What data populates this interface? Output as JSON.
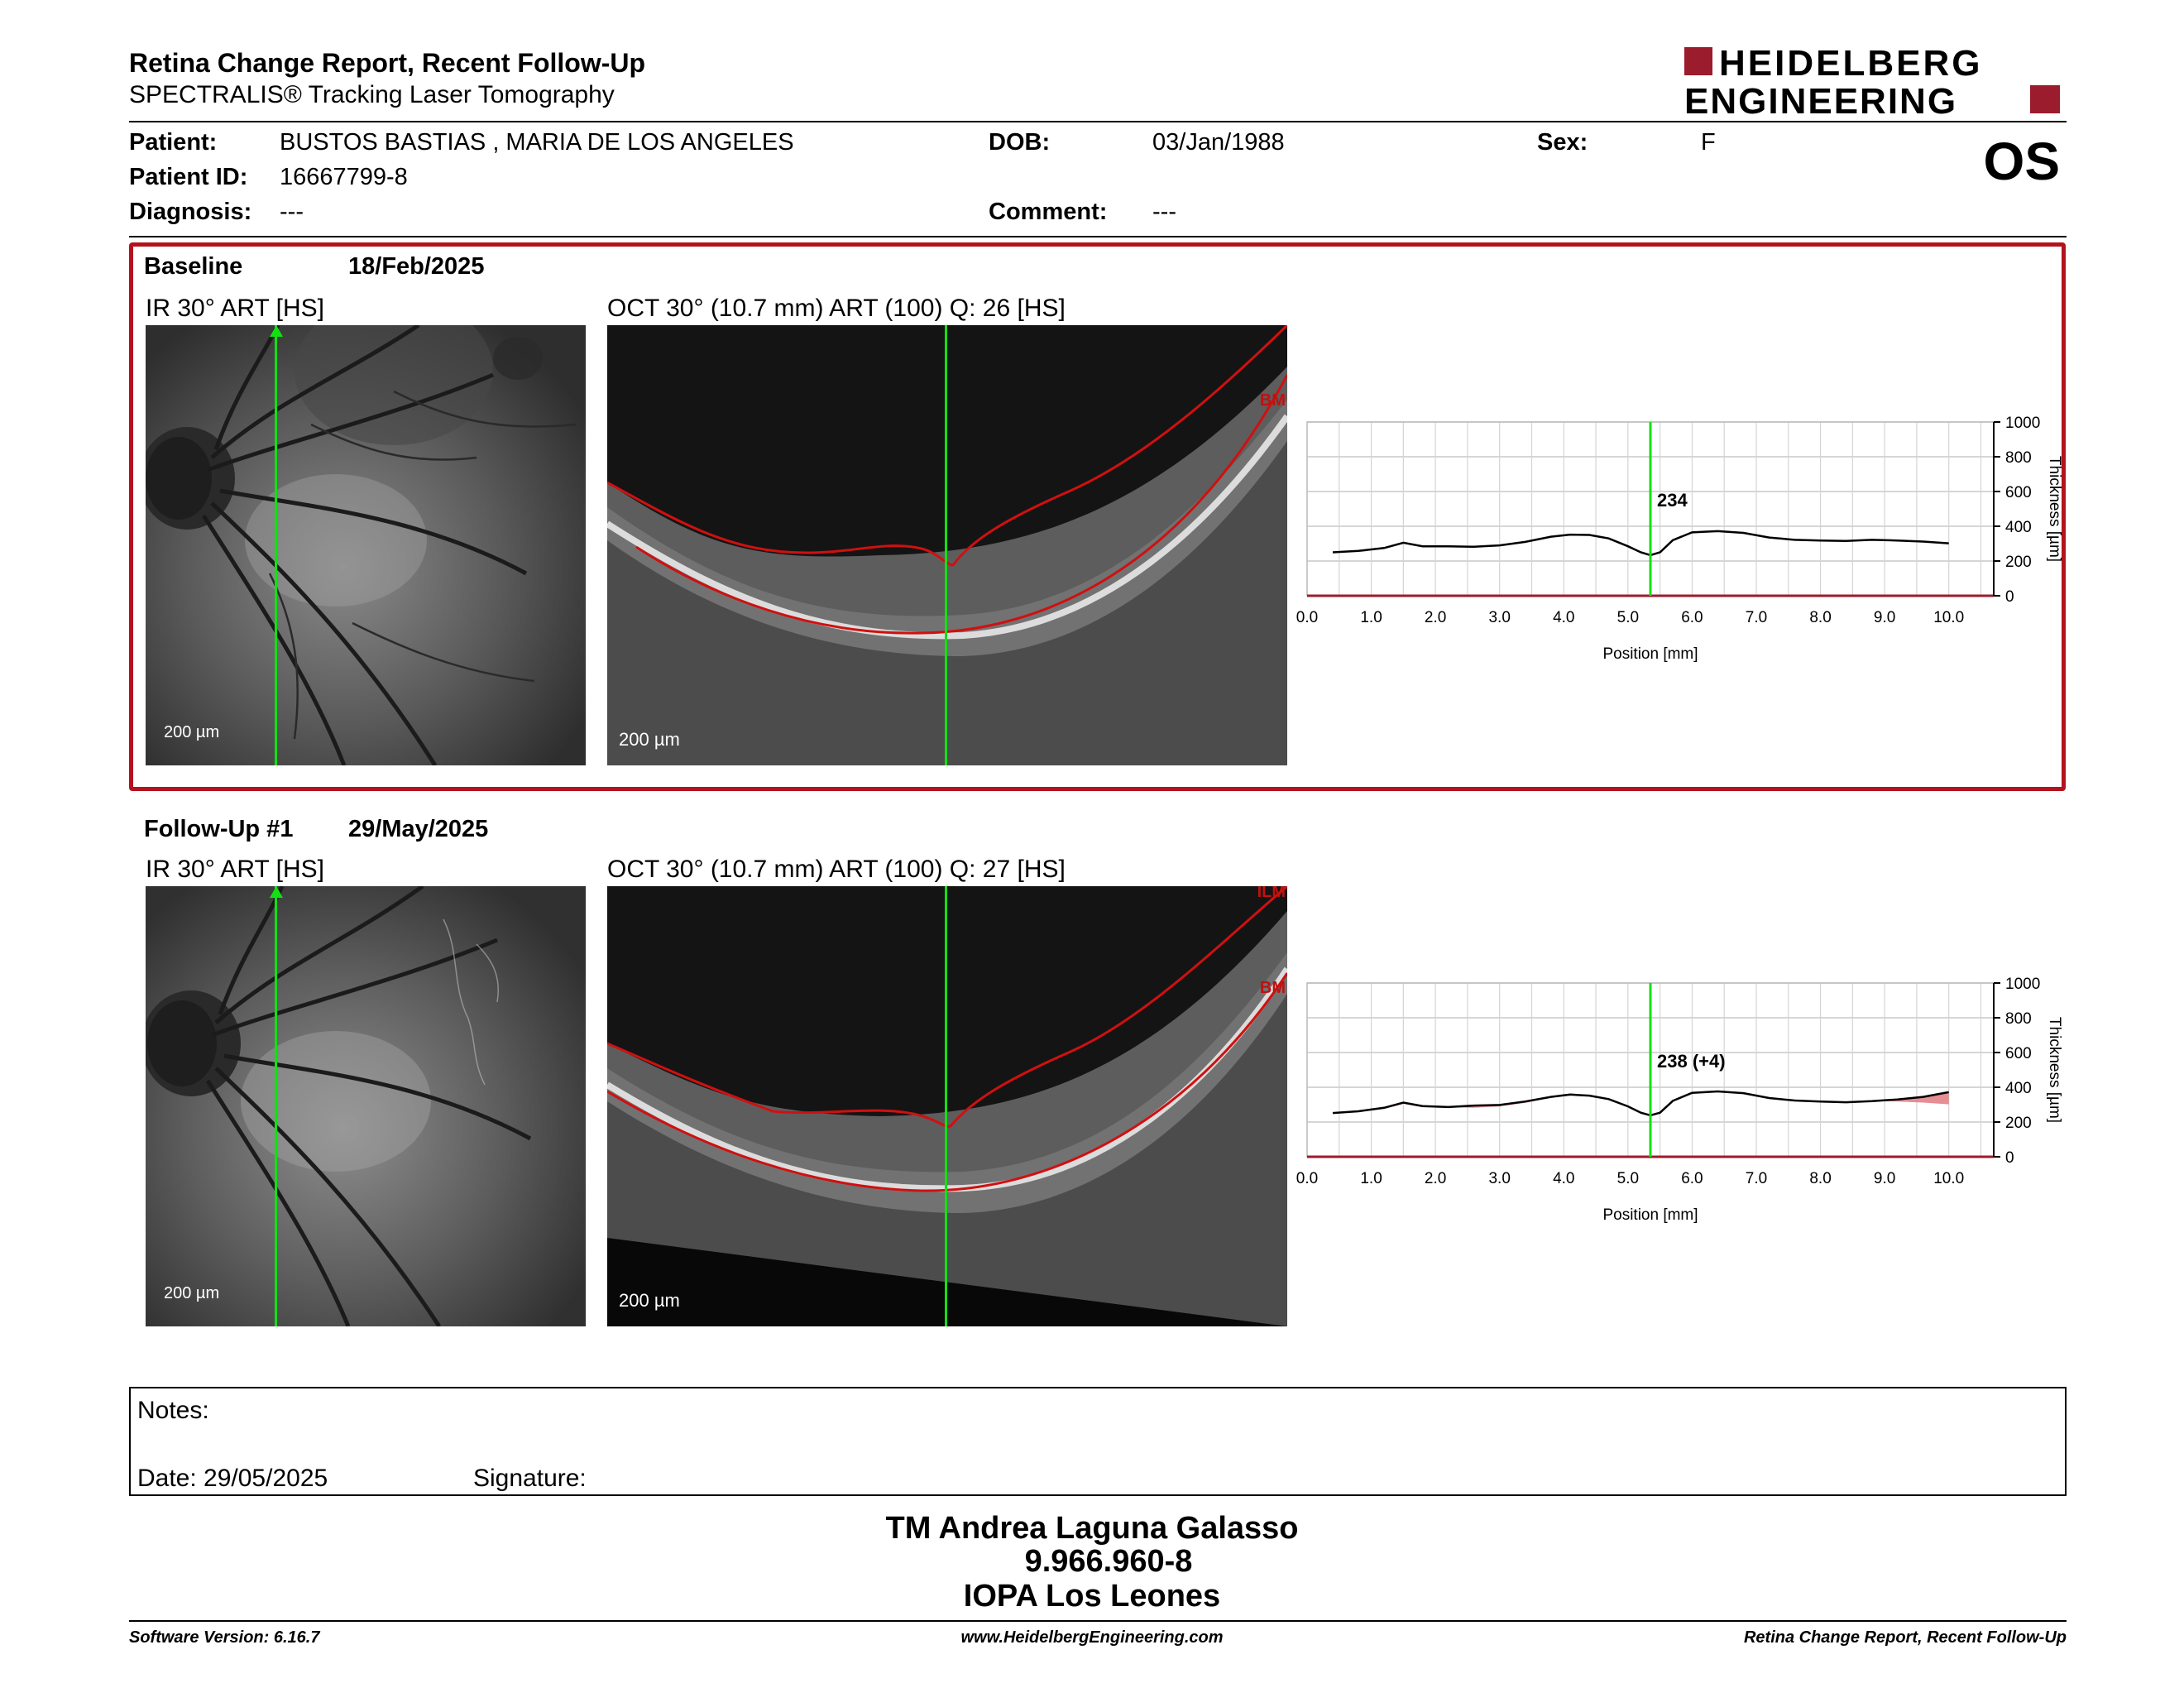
{
  "header": {
    "title": "Retina Change Report, Recent Follow-Up",
    "subtitle": "SPECTRALIS® Tracking Laser Tomography",
    "logo_line1": "HEIDELBERG",
    "logo_line2": "ENGINEERING",
    "eye": "OS"
  },
  "patient": {
    "name_label": "Patient:",
    "name": "BUSTOS BASTIAS , MARIA DE LOS ANGELES",
    "id_label": "Patient ID:",
    "id": "16667799-8",
    "diagnosis_label": "Diagnosis:",
    "diagnosis": "---",
    "dob_label": "DOB:",
    "dob": "03/Jan/1988",
    "comment_label": "Comment:",
    "comment": "---",
    "sex_label": "Sex:",
    "sex": "F"
  },
  "baseline": {
    "label": "Baseline",
    "date": "18/Feb/2025",
    "ir_caption": "IR 30° ART [HS]",
    "oct_caption": "OCT 30° (10.7 mm) ART (100) Q: 26 [HS]",
    "scale": "200 µm",
    "bm_label": "BM",
    "marker_label": "234"
  },
  "followup": {
    "label": "Follow-Up #1",
    "date": "29/May/2025",
    "ir_caption": "IR 30° ART [HS]",
    "oct_caption": "OCT 30° (10.7 mm) ART (100) Q: 27 [HS]",
    "scale": "200 µm",
    "bm_label": "BM",
    "ilm_label": "ILM",
    "marker_label": "238 (+4)"
  },
  "chart_data": [
    {
      "type": "line",
      "xlabel": "Position [mm]",
      "ylabel": "Thickness [µm]",
      "xlim": [
        0,
        10.7
      ],
      "ylim": [
        0,
        1000
      ],
      "xticks": [
        "0.0",
        "1.0",
        "2.0",
        "3.0",
        "4.0",
        "5.0",
        "6.0",
        "7.0",
        "8.0",
        "9.0",
        "10.0"
      ],
      "yticks": [
        "0",
        "200",
        "400",
        "600",
        "800",
        "1000"
      ],
      "grid": true,
      "marker_x": 5.35,
      "marker_value": 234,
      "series": [
        {
          "x": [
            0.4,
            0.8,
            1.2,
            1.5,
            1.8,
            2.2,
            2.6,
            3.0,
            3.4,
            3.8,
            4.1,
            4.4,
            4.7,
            5.0,
            5.2,
            5.35,
            5.5,
            5.7,
            6.0,
            6.4,
            6.8,
            7.2,
            7.6,
            8.0,
            8.4,
            8.8,
            9.2,
            9.6,
            10.0
          ],
          "y": [
            250,
            258,
            275,
            305,
            285,
            285,
            282,
            290,
            310,
            340,
            352,
            350,
            330,
            285,
            250,
            234,
            250,
            320,
            365,
            372,
            362,
            335,
            322,
            318,
            315,
            322,
            318,
            312,
            302
          ]
        }
      ]
    },
    {
      "type": "line",
      "xlabel": "Position [mm]",
      "ylabel": "Thickness [µm]",
      "xlim": [
        0,
        10.7
      ],
      "ylim": [
        0,
        1000
      ],
      "xticks": [
        "0.0",
        "1.0",
        "2.0",
        "3.0",
        "4.0",
        "5.0",
        "6.0",
        "7.0",
        "8.0",
        "9.0",
        "10.0"
      ],
      "yticks": [
        "0",
        "200",
        "400",
        "600",
        "800",
        "1000"
      ],
      "grid": true,
      "marker_x": 5.35,
      "marker_value": 238,
      "marker_change": 4,
      "series": [
        {
          "x": [
            0.4,
            0.8,
            1.2,
            1.5,
            1.8,
            2.2,
            2.6,
            3.0,
            3.4,
            3.8,
            4.1,
            4.4,
            4.7,
            5.0,
            5.2,
            5.35,
            5.5,
            5.7,
            6.0,
            6.4,
            6.8,
            7.2,
            7.6,
            8.0,
            8.4,
            8.8,
            9.2,
            9.6,
            10.0
          ],
          "y": [
            252,
            262,
            282,
            312,
            292,
            286,
            295,
            298,
            318,
            345,
            358,
            352,
            332,
            290,
            254,
            238,
            254,
            322,
            368,
            376,
            366,
            338,
            324,
            318,
            314,
            320,
            330,
            345,
            372
          ]
        }
      ]
    }
  ],
  "notes": {
    "label": "Notes:",
    "date_label": "Date: 29/05/2025",
    "signature_label": "Signature:"
  },
  "signature_block": {
    "line1": "TM Andrea Laguna Galasso",
    "line2": "9.966.960-8",
    "line3": "IOPA Los Leones"
  },
  "footer": {
    "left": "Software Version: 6.16.7",
    "center": "www.HeidelbergEngineering.com",
    "right": "Retina Change Report, Recent Follow-Up"
  }
}
